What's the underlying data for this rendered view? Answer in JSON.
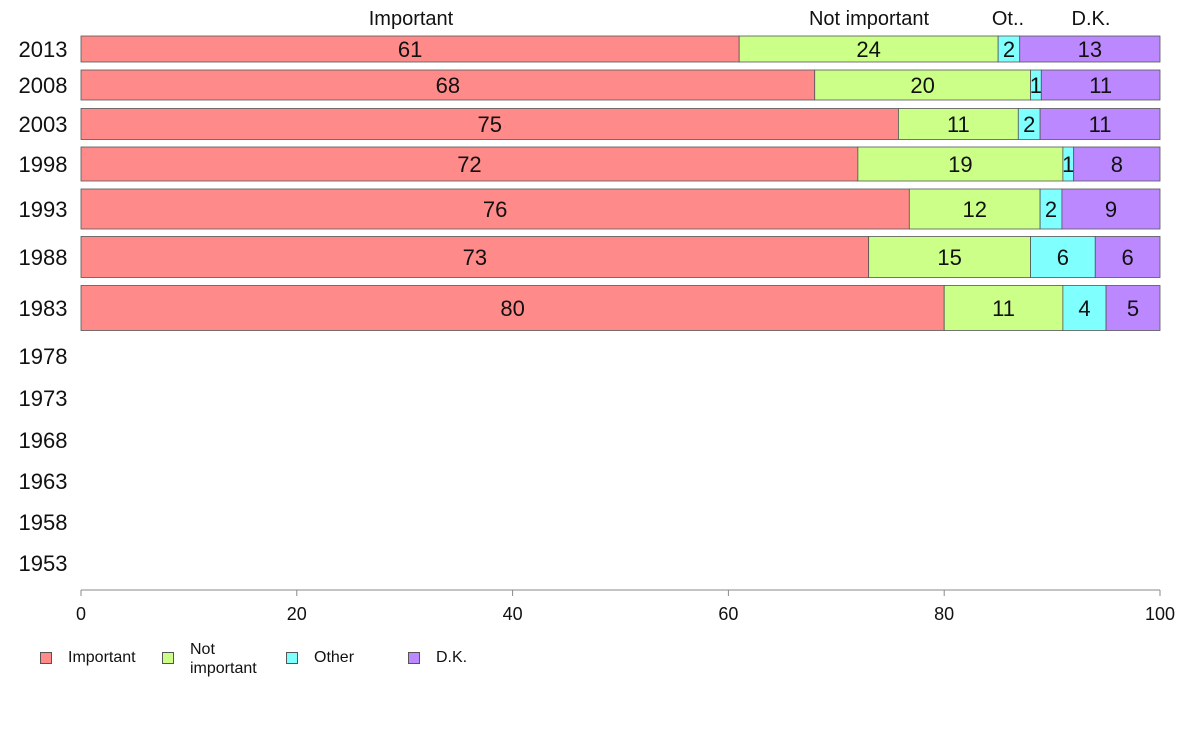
{
  "chart_data": {
    "type": "bar",
    "orientation": "horizontal",
    "stacked": true,
    "categories": [
      "2013",
      "2008",
      "2003",
      "1998",
      "1993",
      "1988",
      "1983",
      "1978",
      "1973",
      "1968",
      "1963",
      "1958",
      "1953"
    ],
    "series": [
      {
        "name": "Important",
        "color": "#ff8a8a",
        "values": [
          61,
          68,
          75,
          72,
          76,
          73,
          80,
          null,
          null,
          null,
          null,
          null,
          null
        ]
      },
      {
        "name": "Not important",
        "color": "#ccff88",
        "values": [
          24,
          20,
          11,
          19,
          12,
          15,
          11,
          null,
          null,
          null,
          null,
          null,
          null
        ]
      },
      {
        "name": "Other",
        "color": "#80ffff",
        "values": [
          2,
          1,
          2,
          1,
          2,
          6,
          4,
          null,
          null,
          null,
          null,
          null,
          null
        ]
      },
      {
        "name": "D.K.",
        "color": "#bb88ff",
        "values": [
          13,
          11,
          11,
          8,
          9,
          6,
          5,
          null,
          null,
          null,
          null,
          null,
          null
        ]
      }
    ],
    "header_labels": [
      "Important",
      "Not important",
      "Ot..",
      "D.K."
    ],
    "xlim": [
      0,
      100
    ],
    "xticks": [
      "0",
      "20",
      "40",
      "60",
      "80",
      "100"
    ],
    "grid": false,
    "legend_position": "bottom",
    "legend": [
      {
        "label_lines": [
          "Important"
        ]
      },
      {
        "label_lines": [
          "Not",
          "important"
        ]
      },
      {
        "label_lines": [
          "Other"
        ]
      },
      {
        "label_lines": [
          "D.K."
        ]
      }
    ]
  }
}
